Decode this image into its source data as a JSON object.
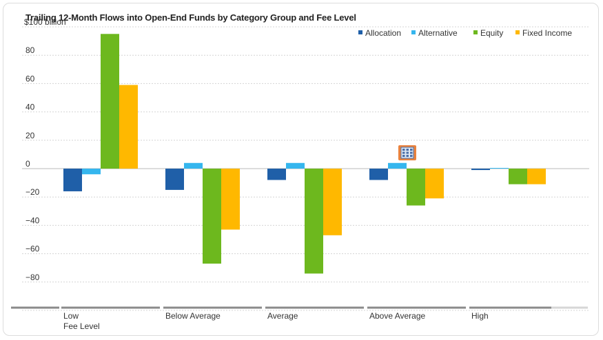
{
  "chart_data": {
    "type": "bar",
    "title": "Trailing 12-Month Flows into Open-End Funds by Category Group and Fee Level",
    "ylabel": "",
    "xlabel": "",
    "y_top_label": "$100 billion",
    "ylim": [
      -100,
      100
    ],
    "y_ticks": [
      80,
      60,
      40,
      20,
      0,
      -20,
      -40,
      -60,
      -80
    ],
    "categories": [
      "Low",
      "Below Average",
      "Average",
      "Above Average",
      "High"
    ],
    "category_sublabels": [
      "Fee Level",
      "",
      "",
      "",
      ""
    ],
    "series": [
      {
        "name": "Allocation",
        "color": "#1f5fa8",
        "values": [
          -16,
          -15,
          -8,
          -8,
          -1
        ]
      },
      {
        "name": "Alternative",
        "color": "#35b6ee",
        "values": [
          -4,
          4,
          4,
          4,
          0.5
        ]
      },
      {
        "name": "Equity",
        "color": "#6db81e",
        "values": [
          95,
          -67,
          -74,
          -26,
          -11
        ]
      },
      {
        "name": "Fixed Income",
        "color": "#ffb800",
        "values": [
          59,
          -43,
          -47,
          -21,
          -11
        ]
      }
    ],
    "grid": true,
    "legend_position": "top-right",
    "annotation_icon": "building-icon"
  }
}
